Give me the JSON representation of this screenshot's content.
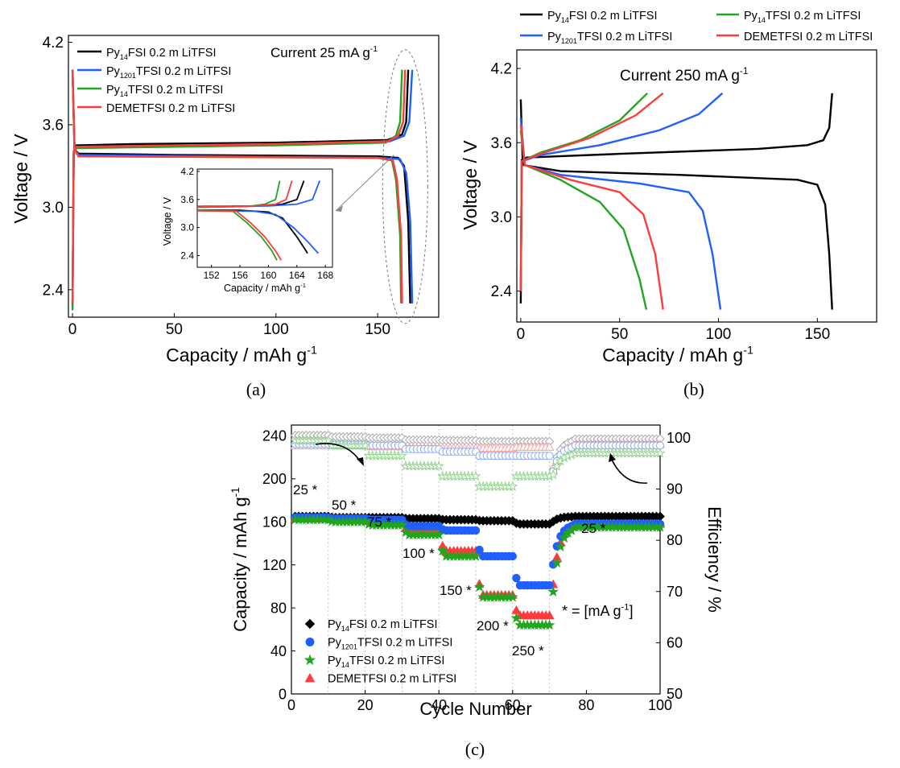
{
  "colors": {
    "black": "#000000",
    "blue": "#1f5fff",
    "green": "#22a51f",
    "red": "#ff3b3b",
    "grid": "#b8c4d8",
    "gray": "#aaaaaa",
    "lightgreen": "#8ed58a",
    "lightblue": "#8aa8ff",
    "lightred": "#ffa0a0"
  },
  "chart_data": [
    {
      "id": "a",
      "type": "line",
      "panel_label": "(a)",
      "xlabel": "Capacity / mAh g",
      "xlabel_sup": "-1",
      "ylabel": "Voltage / V",
      "xlim": [
        -2,
        180
      ],
      "ylim": [
        2.2,
        4.25
      ],
      "xticks": [
        "0",
        "50",
        "100",
        "150"
      ],
      "yticks": [
        "2.4",
        "3.0",
        "3.6",
        "4.2"
      ],
      "annotation": "Current 25 mA g",
      "annotation_sup": "-1",
      "legend": [
        {
          "pre": "Py",
          "sub": "14",
          "post": "FSI 0.2 m LiTFSI",
          "color": "black"
        },
        {
          "pre": "Py",
          "sub": "1201",
          "post": "TFSI 0.2 m LiTFSI",
          "color": "blue"
        },
        {
          "pre": "Py",
          "sub": "14",
          "post": "TFSI 0.2 m LiTFSI",
          "color": "green"
        },
        {
          "pre": "",
          "sub": "",
          "post": "DEMETFSI 0.2 m LiTFSI",
          "color": "red"
        }
      ],
      "series": [
        {
          "color": "black",
          "charge": [
            [
              0,
              2.28
            ],
            [
              0.6,
              3.4
            ],
            [
              2,
              3.45
            ],
            [
              30,
              3.46
            ],
            [
              100,
              3.47
            ],
            [
              155,
              3.49
            ],
            [
              162,
              3.53
            ],
            [
              164,
              3.62
            ],
            [
              165,
              4.0
            ]
          ],
          "discharge": [
            [
              0,
              4.0
            ],
            [
              1,
              3.42
            ],
            [
              3,
              3.39
            ],
            [
              50,
              3.38
            ],
            [
              150,
              3.37
            ],
            [
              160,
              3.36
            ],
            [
              163,
              3.3
            ],
            [
              165,
              2.9
            ],
            [
              166,
              2.3
            ]
          ]
        },
        {
          "color": "blue",
          "charge": [
            [
              0,
              2.3
            ],
            [
              0.6,
              3.4
            ],
            [
              2,
              3.44
            ],
            [
              100,
              3.46
            ],
            [
              156,
              3.48
            ],
            [
              163,
              3.52
            ],
            [
              165.5,
              3.62
            ],
            [
              167,
              4.0
            ]
          ],
          "discharge": [
            [
              0,
              4.0
            ],
            [
              1,
              3.42
            ],
            [
              3,
              3.38
            ],
            [
              150,
              3.36
            ],
            [
              161,
              3.35
            ],
            [
              164,
              3.25
            ],
            [
              166,
              2.9
            ],
            [
              167,
              2.3
            ]
          ]
        },
        {
          "color": "green",
          "charge": [
            [
              0,
              2.25
            ],
            [
              0.6,
              3.4
            ],
            [
              2,
              3.43
            ],
            [
              100,
              3.45
            ],
            [
              154,
              3.47
            ],
            [
              159,
              3.52
            ],
            [
              161,
              3.62
            ],
            [
              162,
              4.0
            ]
          ],
          "discharge": [
            [
              0,
              4.0
            ],
            [
              1,
              3.42
            ],
            [
              3,
              3.37
            ],
            [
              150,
              3.36
            ],
            [
              157,
              3.34
            ],
            [
              159,
              3.2
            ],
            [
              161,
              2.8
            ],
            [
              161.5,
              2.3
            ]
          ]
        },
        {
          "color": "red",
          "charge": [
            [
              0,
              2.3
            ],
            [
              0.6,
              3.41
            ],
            [
              2,
              3.44
            ],
            [
              100,
              3.46
            ],
            [
              155,
              3.48
            ],
            [
              160,
              3.52
            ],
            [
              162.5,
              3.62
            ],
            [
              163.5,
              4.0
            ]
          ],
          "discharge": [
            [
              0,
              4.0
            ],
            [
              1,
              3.42
            ],
            [
              3,
              3.37
            ],
            [
              150,
              3.36
            ],
            [
              157.5,
              3.34
            ],
            [
              159.5,
              3.2
            ],
            [
              161.5,
              2.8
            ],
            [
              162,
              2.3
            ]
          ]
        }
      ],
      "inset": {
        "xlabel": "Capacity / mAh g",
        "xlabel_sup": "-1",
        "ylabel": "Voltage / V",
        "xlim": [
          150,
          169
        ],
        "ylim": [
          2.15,
          4.25
        ],
        "xticks": [
          "152",
          "156",
          "160",
          "164",
          "168"
        ],
        "yticks": [
          "2.4",
          "3.0",
          "3.6",
          "4.2"
        ],
        "series": [
          {
            "color": "black",
            "charge": [
              [
                150,
                3.45
              ],
              [
                158,
                3.46
              ],
              [
                162,
                3.5
              ],
              [
                164,
                3.6
              ],
              [
                165,
                4.0
              ]
            ],
            "discharge": [
              [
                150,
                3.37
              ],
              [
                156,
                3.37
              ],
              [
                160,
                3.33
              ],
              [
                162,
                3.2
              ],
              [
                164,
                2.8
              ],
              [
                165.5,
                2.45
              ]
            ]
          },
          {
            "color": "blue",
            "charge": [
              [
                150,
                3.44
              ],
              [
                160,
                3.46
              ],
              [
                164,
                3.5
              ],
              [
                166.2,
                3.6
              ],
              [
                167.2,
                4.0
              ]
            ],
            "discharge": [
              [
                150,
                3.36
              ],
              [
                158,
                3.35
              ],
              [
                161,
                3.28
              ],
              [
                163.5,
                3.0
              ],
              [
                165.5,
                2.7
              ],
              [
                167,
                2.45
              ]
            ]
          },
          {
            "color": "green",
            "charge": [
              [
                150,
                3.43
              ],
              [
                157,
                3.45
              ],
              [
                159.5,
                3.5
              ],
              [
                161,
                3.6
              ],
              [
                161.6,
                4.0
              ]
            ],
            "discharge": [
              [
                150,
                3.36
              ],
              [
                155,
                3.35
              ],
              [
                157,
                3.1
              ],
              [
                159,
                2.8
              ],
              [
                160.5,
                2.5
              ],
              [
                161.2,
                2.3
              ]
            ]
          },
          {
            "color": "red",
            "charge": [
              [
                150,
                3.44
              ],
              [
                158,
                3.46
              ],
              [
                161,
                3.5
              ],
              [
                162.5,
                3.6
              ],
              [
                163.3,
                4.0
              ]
            ],
            "discharge": [
              [
                150,
                3.36
              ],
              [
                155.5,
                3.35
              ],
              [
                157.5,
                3.1
              ],
              [
                159.5,
                2.8
              ],
              [
                161,
                2.5
              ],
              [
                161.8,
                2.3
              ]
            ]
          }
        ]
      }
    },
    {
      "id": "b",
      "type": "line",
      "panel_label": "(b)",
      "xlabel": "Capacity / mAh g",
      "xlabel_sup": "-1",
      "ylabel": "Voltage / V",
      "xlim": [
        -2,
        180
      ],
      "ylim": [
        2.15,
        4.35
      ],
      "xticks": [
        "0",
        "50",
        "100",
        "150"
      ],
      "yticks": [
        "2.4",
        "3.0",
        "3.6",
        "4.2"
      ],
      "annotation": "Current 250 mA g",
      "annotation_sup": "-1",
      "legend": [
        {
          "pre": "Py",
          "sub": "14",
          "post": "FSI  0.2 m LiTFSI",
          "color": "black"
        },
        {
          "pre": "Py",
          "sub": "14",
          "post": "TFSI 0.2 m LiTFSI",
          "color": "green"
        },
        {
          "pre": "Py",
          "sub": "1201",
          "post": "TFSI 0.2 m LiTFSI",
          "color": "blue"
        },
        {
          "pre": "",
          "sub": "",
          "post": "DEMETFSI 0.2 m LiTFSI",
          "color": "red"
        }
      ],
      "series": [
        {
          "color": "black",
          "charge": [
            [
              0,
              2.3
            ],
            [
              0.5,
              3.46
            ],
            [
              3,
              3.48
            ],
            [
              50,
              3.51
            ],
            [
              120,
              3.55
            ],
            [
              145,
              3.58
            ],
            [
              153,
              3.62
            ],
            [
              156,
              3.72
            ],
            [
              157.5,
              4.0
            ]
          ],
          "discharge": [
            [
              0,
              3.95
            ],
            [
              1,
              3.42
            ],
            [
              20,
              3.37
            ],
            [
              80,
              3.34
            ],
            [
              140,
              3.3
            ],
            [
              150,
              3.26
            ],
            [
              154,
              3.1
            ],
            [
              156,
              2.7
            ],
            [
              157.5,
              2.25
            ]
          ]
        },
        {
          "color": "blue",
          "charge": [
            [
              0,
              2.4
            ],
            [
              0.5,
              3.45
            ],
            [
              10,
              3.5
            ],
            [
              40,
              3.58
            ],
            [
              70,
              3.7
            ],
            [
              90,
              3.83
            ],
            [
              102,
              4.0
            ]
          ],
          "discharge": [
            [
              0,
              3.8
            ],
            [
              2,
              3.42
            ],
            [
              20,
              3.34
            ],
            [
              60,
              3.27
            ],
            [
              85,
              3.2
            ],
            [
              92,
              3.05
            ],
            [
              97,
              2.7
            ],
            [
              101,
              2.25
            ]
          ]
        },
        {
          "color": "green",
          "charge": [
            [
              0,
              2.4
            ],
            [
              0.5,
              3.45
            ],
            [
              10,
              3.52
            ],
            [
              30,
              3.62
            ],
            [
              50,
              3.78
            ],
            [
              64,
              4.0
            ]
          ],
          "discharge": [
            [
              0,
              3.7
            ],
            [
              2,
              3.42
            ],
            [
              20,
              3.3
            ],
            [
              40,
              3.12
            ],
            [
              52,
              2.9
            ],
            [
              60,
              2.5
            ],
            [
              63.5,
              2.25
            ]
          ]
        },
        {
          "color": "red",
          "charge": [
            [
              0,
              2.4
            ],
            [
              0.5,
              3.45
            ],
            [
              10,
              3.51
            ],
            [
              35,
              3.64
            ],
            [
              58,
              3.82
            ],
            [
              72,
              4.0
            ]
          ],
          "discharge": [
            [
              0,
              3.75
            ],
            [
              2,
              3.42
            ],
            [
              25,
              3.3
            ],
            [
              50,
              3.2
            ],
            [
              62,
              3.02
            ],
            [
              68,
              2.7
            ],
            [
              72,
              2.25
            ]
          ]
        }
      ]
    },
    {
      "id": "c",
      "type": "scatter",
      "panel_label": "(c)",
      "xlabel": "Cycle Number",
      "ylabel": "Capacity / mAh g",
      "ylabel_sup": "-1",
      "y2label": "Efficiency / %",
      "xlim": [
        0,
        100
      ],
      "ylim": [
        0,
        250
      ],
      "y2lim": [
        50,
        102.5
      ],
      "xticks": [
        "0",
        "20",
        "40",
        "60",
        "80",
        "100"
      ],
      "yticks": [
        "0",
        "40",
        "80",
        "120",
        "160",
        "200",
        "240"
      ],
      "y2ticks": [
        "50",
        "60",
        "70",
        "80",
        "90",
        "100"
      ],
      "grid_x": [
        10,
        20,
        30,
        40,
        50,
        60,
        70
      ],
      "rate_labels": [
        "25 *",
        "50 *",
        "75 *",
        "100 *",
        "150 *",
        "200 *",
        "250 *",
        "25 *"
      ],
      "unit_note": "* = [mA g",
      "unit_note_sup": "-1",
      "unit_note_end": "]",
      "legend": [
        {
          "pre": "Py",
          "sub": "14",
          "post": "FSI 0.2 m LiTFSI",
          "color": "black",
          "marker": "diamond"
        },
        {
          "pre": "Py",
          "sub": "1201",
          "post": "TFSI 0.2 m LiTFSI",
          "color": "blue",
          "marker": "circle"
        },
        {
          "pre": "Py",
          "sub": "14",
          "post": "TFSI 0.2 m LiTFSI",
          "color": "green",
          "marker": "star"
        },
        {
          "pre": "",
          "sub": "",
          "post": "DEMETFSI 0.2 m LiTFSI",
          "color": "red",
          "marker": "triangle"
        }
      ],
      "capacity_levels": {
        "black": [
          165,
          164,
          164,
          163,
          162,
          161,
          158,
          165
        ],
        "blue": [
          164,
          163,
          162,
          156,
          152,
          128,
          101,
          158
        ],
        "green": [
          162,
          160,
          157,
          148,
          128,
          90,
          64,
          155
        ],
        "red": [
          163,
          162,
          160,
          152,
          133,
          92,
          73,
          158
        ]
      },
      "efficiency_levels": {
        "black": [
          100.5,
          100.2,
          100.0,
          99.6,
          99.5,
          99.3,
          99.3,
          99.8
        ],
        "blue": [
          98.8,
          98.7,
          98.5,
          97.8,
          97.3,
          96.5,
          96.5,
          98.5
        ],
        "green": [
          99.5,
          98.5,
          96.5,
          94.5,
          92.5,
          90.5,
          92.5,
          97.0
        ],
        "red": [
          98.5,
          98.5,
          98.3,
          98.0,
          98.0,
          98.0,
          98.2,
          98.7
        ]
      }
    }
  ]
}
